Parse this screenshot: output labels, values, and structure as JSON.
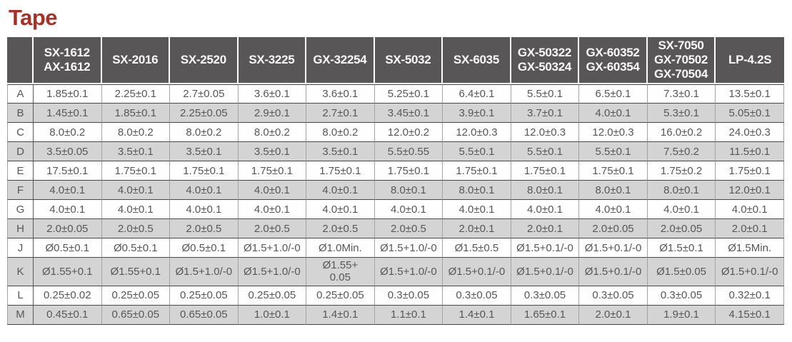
{
  "title": "Tape",
  "colors": {
    "title": "#aa3026",
    "header_bg": "#585656",
    "header_text": "#fbfbfb",
    "stripe": "#d4d4d4",
    "body_text": "#575757",
    "row_line": "#474747",
    "column_line": "#a3a3a3"
  },
  "table": {
    "corner_label": "",
    "columns": [
      {
        "id": "sx-1612",
        "lines": [
          "SX-1612",
          "AX-1612"
        ]
      },
      {
        "id": "sx-2016",
        "lines": [
          "SX-2016"
        ]
      },
      {
        "id": "sx-2520",
        "lines": [
          "SX-2520"
        ]
      },
      {
        "id": "sx-3225",
        "lines": [
          "SX-3225"
        ]
      },
      {
        "id": "gx-32254",
        "lines": [
          "GX-32254"
        ]
      },
      {
        "id": "sx-5032",
        "lines": [
          "SX-5032"
        ]
      },
      {
        "id": "sx-6035",
        "lines": [
          "SX-6035"
        ]
      },
      {
        "id": "gx-50322",
        "lines": [
          "GX-50322",
          "GX-50324"
        ]
      },
      {
        "id": "gx-60352",
        "lines": [
          "GX-60352",
          "GX-60354"
        ]
      },
      {
        "id": "sx-7050",
        "lines": [
          "SX-7050",
          "GX-70502",
          "GX-70504"
        ]
      },
      {
        "id": "lp-4.2s",
        "lines": [
          "LP-4.2S"
        ]
      }
    ],
    "rows": [
      {
        "label": "A",
        "values": [
          "1.85±0.1",
          "2.25±0.1",
          "2.7±0.05",
          "3.6±0.1",
          "3.6±0.1",
          "5.25±0.1",
          "6.4±0.1",
          "5.5±0.1",
          "6.5±0.1",
          "7.3±0.1",
          "13.5±0.1"
        ]
      },
      {
        "label": "B",
        "values": [
          "1.45±0.1",
          "1.85±0.1",
          "2.25±0.05",
          "2.9±0.1",
          "2.7±0.1",
          "3.45±0.1",
          "3.9±0.1",
          "3.7±0.1",
          "4.0±0.1",
          "5.3±0.1",
          "5.05±0.1"
        ]
      },
      {
        "label": "C",
        "values": [
          "8.0±0.2",
          "8.0±0.2",
          "8.0±0.2",
          "8.0±0.2",
          "8.0±0.2",
          "12.0±0.2",
          "12.0±0.3",
          "12.0±0.3",
          "12.0±0.3",
          "16.0±0.2",
          "24.0±0.3"
        ]
      },
      {
        "label": "D",
        "values": [
          "3.5±0.05",
          "3.5±0.1",
          "3.5±0.1",
          "3.5±0.1",
          "3.5±0.1",
          "5.5±0.55",
          "5.5±0.1",
          "5.5±0.1",
          "5.5±0.1",
          "7.5±0.2",
          "11.5±0.1"
        ]
      },
      {
        "label": "E",
        "values": [
          "17.5±0.1",
          "1.75±0.1",
          "1.75±0.1",
          "1.75±0.1",
          "1.75±0.1",
          "1.75±0.1",
          "1.75±0.1",
          "1.75±0.1",
          "1.75±0.1",
          "1.75±0.2",
          "1.75±0.1"
        ]
      },
      {
        "label": "F",
        "values": [
          "4.0±0.1",
          "4.0±0.1",
          "4.0±0.1",
          "4.0±0.1",
          "4.0±0.1",
          "8.0±0.1",
          "8.0±0.1",
          "8.0±0.1",
          "8.0±0.1",
          "8.0±0.1",
          "12.0±0.1"
        ]
      },
      {
        "label": "G",
        "values": [
          "4.0±0.1",
          "4.0±0.1",
          "4.0±0.1",
          "4.0±0.1",
          "4.0±0.1",
          "4.0±0.1",
          "4.0±0.1",
          "4.0±0.1",
          "4.0±0.1",
          "4.0±0.1",
          "4.0±0.1"
        ]
      },
      {
        "label": "H",
        "values": [
          "2.0±0.05",
          "2.0±0.5",
          "2.0±0.5",
          "2.0±0.5",
          "2.0±0.5",
          "2.0±0.5",
          "2.0±0.1",
          "2.0±0.1",
          "2.0±0.05",
          "2.0±0.05",
          "2.0±0.1"
        ]
      },
      {
        "label": "J",
        "values": [
          "Ø0.5±0.1",
          "Ø0.5±0.1",
          "Ø0.5±0.1",
          "Ø1.5+1.0/-0",
          "Ø1.0Min.",
          "Ø1.5+1.0/-0",
          "Ø1.5±0.5",
          "Ø1.5+0.1/-0",
          "Ø1.5+0.1/-0",
          "Ø1.5±0.1",
          "Ø1.5Min."
        ]
      },
      {
        "label": "K",
        "values": [
          "Ø1.55+0.1",
          "Ø1.55+0.1",
          "Ø1.5+1.0/-0",
          "Ø1.5+1.0/-0",
          "Ø1.55+\n0.05",
          "Ø1.5+1.0/-0",
          "Ø1.5+0.1/-0",
          "Ø1.5+0.1/-0",
          "Ø1.5+0.1/-0",
          "Ø1.5±0.05",
          "Ø1.5+0.1/-0"
        ]
      },
      {
        "label": "L",
        "values": [
          "0.25±0.02",
          "0.25±0.05",
          "0.25±0.05",
          "0.25±0.05",
          "0.25±0.05",
          "0.3±0.05",
          "0.3±0.05",
          "0.3±0.05",
          "0.3±0.05",
          "0.3±0.05",
          "0.32±0.1"
        ]
      },
      {
        "label": "M",
        "values": [
          "0.45±0.1",
          "0.65±0.05",
          "0.65±0.05",
          "1.0±0.1",
          "1.4±0.1",
          "1.1±0.1",
          "1.4±0.1",
          "1.65±0.1",
          "2.0±0.1",
          "1.9±0.1",
          "4.15±0.1"
        ]
      }
    ]
  }
}
